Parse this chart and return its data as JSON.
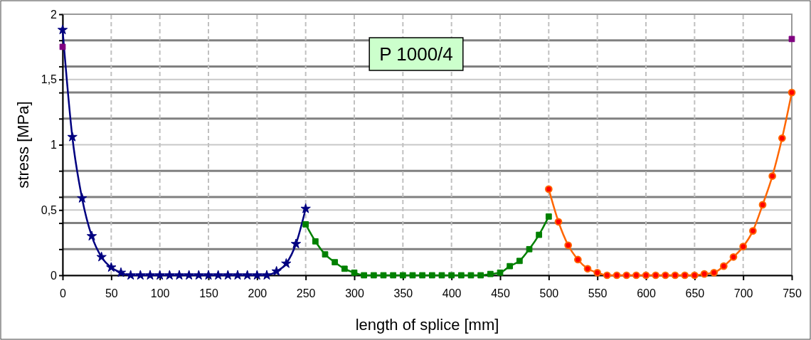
{
  "chart_data": {
    "type": "line",
    "title": "P 1000/4",
    "xlabel": "length of splice [mm]",
    "ylabel": "stress [MPa]",
    "xlim": [
      0,
      750
    ],
    "xticks": [
      0,
      50,
      100,
      150,
      200,
      250,
      300,
      350,
      400,
      450,
      500,
      550,
      600,
      650,
      700,
      750
    ],
    "ylim": [
      0,
      2
    ],
    "yticks": [
      0,
      {
        "value": 0.2,
        "label": null
      },
      {
        "value": 0.4,
        "label": null
      },
      {
        "value": 0.5,
        "label": "0,5"
      },
      {
        "value": 0.6,
        "label": null
      },
      {
        "value": 0.8,
        "label": null
      },
      1,
      {
        "value": 1.2,
        "label": null
      },
      {
        "value": 1.4,
        "label": null
      },
      {
        "value": 1.5,
        "label": "1,5"
      },
      {
        "value": 1.6,
        "label": null
      },
      {
        "value": 1.8,
        "label": null
      },
      2
    ],
    "grid": true,
    "series": [
      {
        "color": "#000080",
        "marker": "star",
        "x": [
          0,
          10,
          20,
          30,
          40,
          50,
          60,
          70,
          80,
          90,
          100,
          110,
          120,
          130,
          140,
          150,
          160,
          170,
          180,
          190,
          200,
          210,
          220,
          230,
          240,
          250
        ],
        "values": [
          1.88,
          1.06,
          0.59,
          0.3,
          0.14,
          0.06,
          0.02,
          0,
          0,
          0,
          0,
          0,
          0,
          0,
          0,
          0,
          0,
          0,
          0,
          0,
          0,
          0,
          0.03,
          0.09,
          0.24,
          0.51
        ]
      },
      {
        "color": "#008000",
        "marker": "square",
        "x": [
          250,
          260,
          270,
          280,
          290,
          300,
          310,
          320,
          330,
          340,
          350,
          360,
          370,
          380,
          390,
          400,
          410,
          420,
          430,
          440,
          450,
          460,
          470,
          480,
          490,
          500
        ],
        "values": [
          0.39,
          0.26,
          0.16,
          0.1,
          0.05,
          0.02,
          0,
          0,
          0,
          0,
          0,
          0,
          0,
          0,
          0,
          0,
          0,
          0,
          0,
          0.01,
          0.02,
          0.07,
          0.11,
          0.2,
          0.31,
          0.45
        ]
      },
      {
        "color": "#ff6600",
        "marker": "circle",
        "x": [
          500,
          510,
          520,
          530,
          540,
          550,
          560,
          570,
          580,
          590,
          600,
          610,
          620,
          630,
          640,
          650,
          660,
          670,
          680,
          690,
          700,
          710,
          720,
          730,
          740,
          750
        ],
        "values": [
          0.66,
          0.41,
          0.23,
          0.12,
          0.05,
          0.02,
          0,
          0,
          0,
          0,
          0,
          0,
          0,
          0,
          0,
          0,
          0.01,
          0.02,
          0.07,
          0.14,
          0.22,
          0.34,
          0.54,
          0.76,
          1.05,
          1.4
        ]
      },
      {
        "type": "scatter",
        "color": "#800080",
        "marker": "square",
        "x": [
          0,
          750
        ],
        "values": [
          1.75,
          1.81
        ]
      }
    ]
  }
}
